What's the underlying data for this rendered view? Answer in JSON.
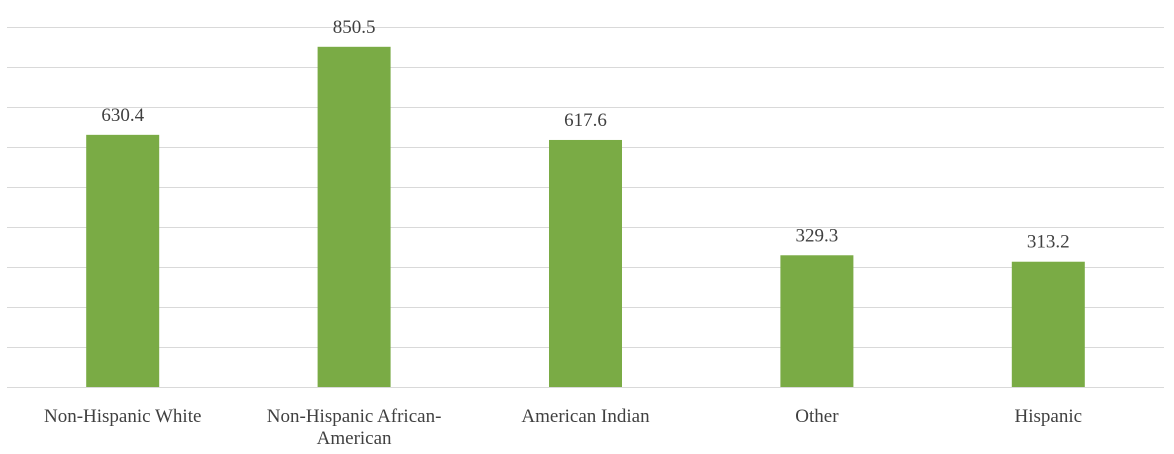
{
  "chart_data": {
    "type": "bar",
    "categories": [
      [
        "Non-Hispanic White"
      ],
      [
        "Non-Hispanic African-",
        "American"
      ],
      [
        "American Indian"
      ],
      [
        "Other"
      ],
      [
        "Hispanic"
      ]
    ],
    "values": [
      630.4,
      850.5,
      617.6,
      329.3,
      313.2
    ],
    "data_labels": [
      "630.4",
      "850.5",
      "617.6",
      "329.3",
      "313.2"
    ],
    "ylim": [
      0,
      900
    ],
    "grid": true,
    "colors": {
      "bar": "#7aab45",
      "grid": "#d9d9d9",
      "text": "#404040"
    }
  }
}
